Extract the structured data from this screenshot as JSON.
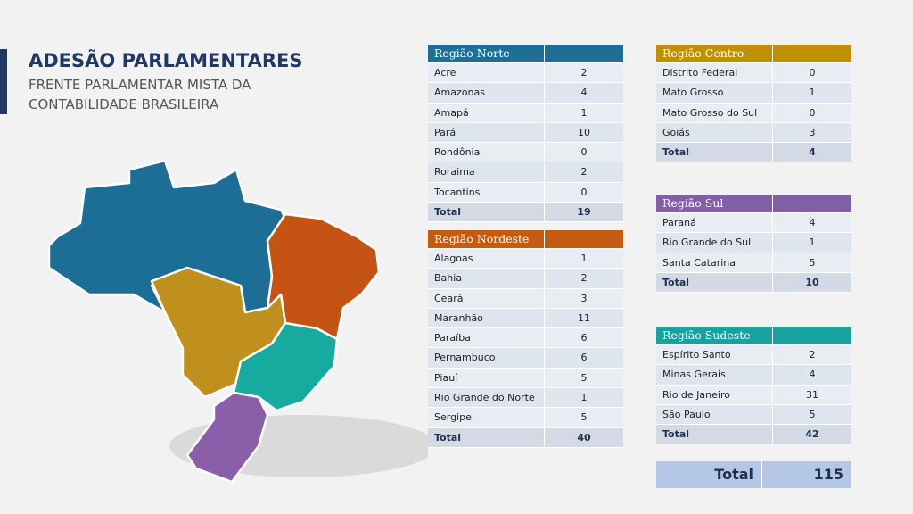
{
  "header": {
    "title": "ADESÃO PARLAMENTARES",
    "subtitle_lines": [
      "FRENTE PARLAMENTAR MISTA DA",
      "CONTABILIDADE BRASILEIRA"
    ]
  },
  "tables": [
    {
      "region": "Região Norte",
      "rows": [
        {
          "name": "Acre",
          "value": 2
        },
        {
          "name": "Amazonas",
          "value": 4
        },
        {
          "name": "Amapá",
          "value": 1
        },
        {
          "name": "Pará",
          "value": 10
        },
        {
          "name": "Rondônia",
          "value": 0
        },
        {
          "name": "Roraima",
          "value": 2
        },
        {
          "name": "Tocantins",
          "value": 0
        }
      ],
      "total_label": "Total",
      "total": 19
    },
    {
      "region": "Região Nordeste",
      "rows": [
        {
          "name": "Alagoas",
          "value": 1
        },
        {
          "name": "Bahia",
          "value": 2
        },
        {
          "name": "Ceará",
          "value": 3
        },
        {
          "name": "Maranhão",
          "value": 11
        },
        {
          "name": "Paraíba",
          "value": 6
        },
        {
          "name": "Pernambuco",
          "value": 6
        },
        {
          "name": "Piauí",
          "value": 5
        },
        {
          "name": "Rio Grande do Norte",
          "value": 1
        },
        {
          "name": "Sergipe",
          "value": 5
        }
      ],
      "total_label": "Total",
      "total": 40
    },
    {
      "region": "Região Centro-Oeste",
      "rows": [
        {
          "name": "Distrito Federal",
          "value": 0
        },
        {
          "name": "Mato Grosso",
          "value": 1
        },
        {
          "name": "Mato Grosso do Sul",
          "value": 0
        },
        {
          "name": "Goiás",
          "value": 3
        }
      ],
      "total_label": "Total",
      "total": 4
    },
    {
      "region": "Região Sul",
      "rows": [
        {
          "name": "Paraná",
          "value": 4
        },
        {
          "name": "Rio Grande do Sul",
          "value": 1
        },
        {
          "name": "Santa Catarina",
          "value": 5
        }
      ],
      "total_label": "Total",
      "total": 10
    },
    {
      "region": "Região Sudeste",
      "rows": [
        {
          "name": "Espírito Santo",
          "value": 2
        },
        {
          "name": "Minas Gerais",
          "value": 4
        },
        {
          "name": "Rio de Janeiro",
          "value": 31
        },
        {
          "name": "São Paulo",
          "value": 5
        }
      ],
      "total_label": "Total",
      "total": 42
    }
  ],
  "grand_total": {
    "label": "Total",
    "value": 115
  }
}
